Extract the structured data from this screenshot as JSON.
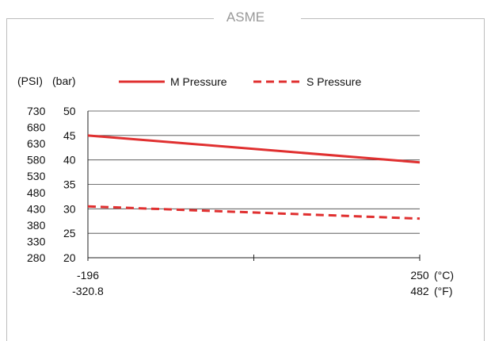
{
  "frame_title": "ASME",
  "chart_data": {
    "type": "line",
    "title": "",
    "ylabel_left": "(PSI)",
    "ylabel_right": "(bar)",
    "psi_ticks": [
      "730",
      "680",
      "630",
      "580",
      "530",
      "480",
      "430",
      "380",
      "330",
      "280"
    ],
    "bar_ticks": [
      "50",
      "45",
      "40",
      "35",
      "30",
      "25",
      "20"
    ],
    "x_ticks": [
      {
        "value": -196,
        "c": "-196",
        "f": "-320.8"
      },
      {
        "value": 250,
        "c": "250",
        "f": "482"
      }
    ],
    "x_unit_c": "(°C)",
    "x_unit_f": "(°F)",
    "xlim": [
      -196,
      250
    ],
    "ylim": [
      20,
      50
    ],
    "grid": true,
    "legend_position": "top",
    "series": [
      {
        "name": "M Pressure",
        "style": "solid",
        "color": "#e03030",
        "x": [
          -196,
          250
        ],
        "y": [
          45.0,
          39.5
        ]
      },
      {
        "name": "S Pressure",
        "style": "dashed",
        "color": "#e03030",
        "x": [
          -196,
          250
        ],
        "y": [
          30.5,
          28.0
        ]
      }
    ]
  }
}
